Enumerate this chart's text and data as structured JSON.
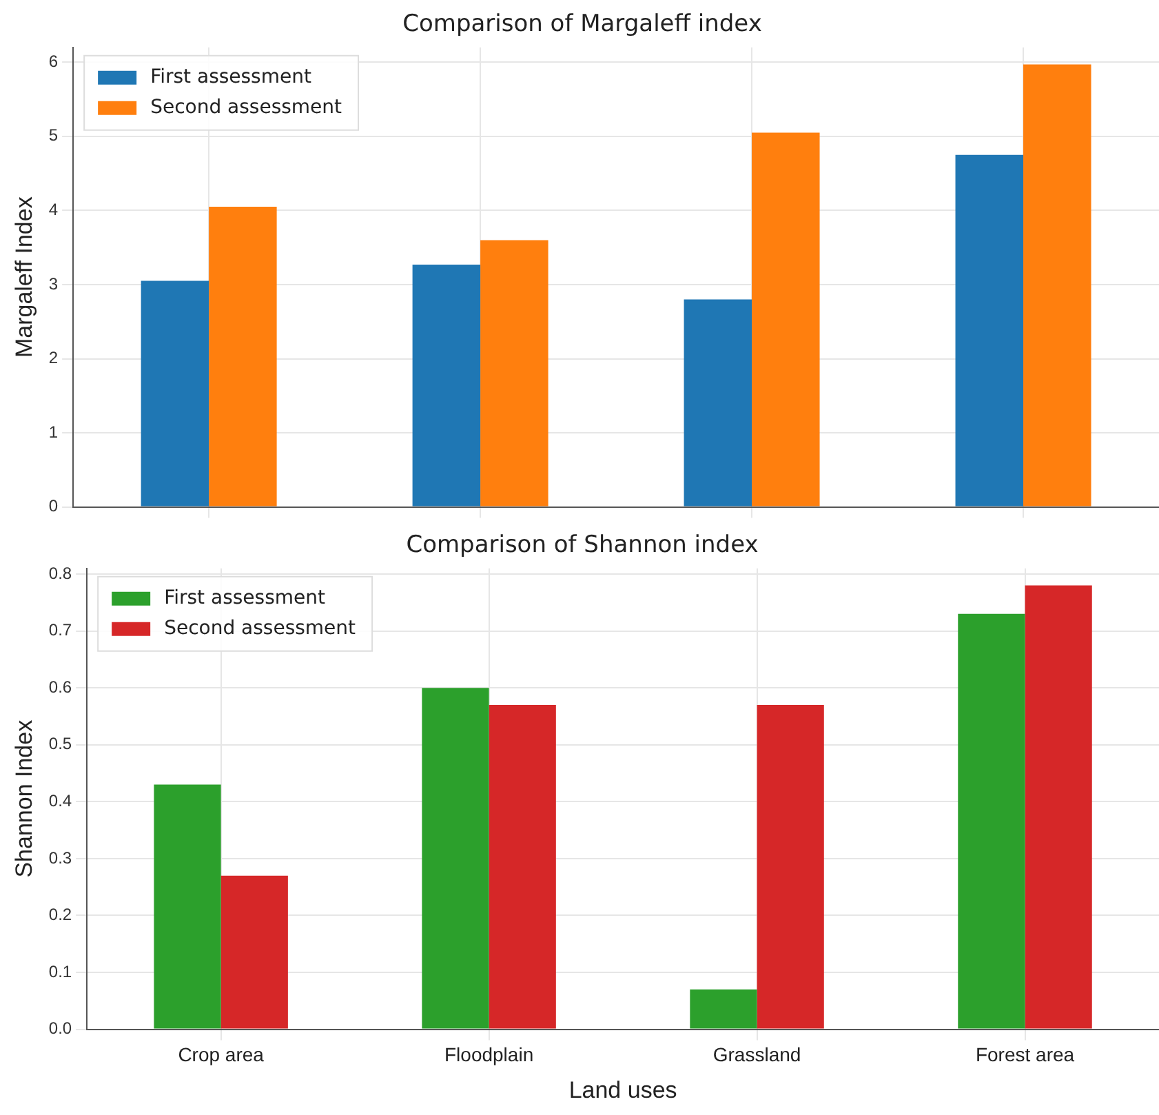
{
  "chart_data": [
    {
      "type": "bar",
      "title": "Comparison of Margaleff index",
      "ylabel": "Margaleff Index",
      "categories": [
        null,
        null,
        null,
        null
      ],
      "series": [
        {
          "name": "First assessment",
          "color": "#1f77b4",
          "values": [
            3.05,
            3.27,
            2.8,
            4.75
          ]
        },
        {
          "name": "Second assessment",
          "color": "#ff7f0e",
          "values": [
            4.05,
            3.6,
            5.05,
            5.97
          ]
        }
      ],
      "ylim": [
        0,
        6.2
      ],
      "yticks": [
        0,
        1,
        2,
        3,
        4,
        5,
        6
      ],
      "grid": true,
      "legend": "top left",
      "tick_labels": "y"
    },
    {
      "type": "bar",
      "title": "Comparison of Shannon index",
      "xlabel": "Land uses",
      "ylabel": "Shannon Index",
      "categories": [
        "Crop area",
        "Floodplain",
        "Grassland",
        "Forest area"
      ],
      "series": [
        {
          "name": "First assessment",
          "color": "#2ca02c",
          "values": [
            0.43,
            0.6,
            0.07,
            0.73
          ]
        },
        {
          "name": "Second assessment",
          "color": "#d62728",
          "values": [
            0.27,
            0.57,
            0.57,
            0.78
          ]
        }
      ],
      "ylim": [
        0,
        0.81
      ],
      "yticks": [
        {
          "value": 0,
          "label": "0.0"
        },
        0.1,
        0.2,
        0.3,
        0.4,
        0.5,
        0.6,
        0.7,
        0.8
      ],
      "grid": true,
      "legend": "top left"
    }
  ]
}
